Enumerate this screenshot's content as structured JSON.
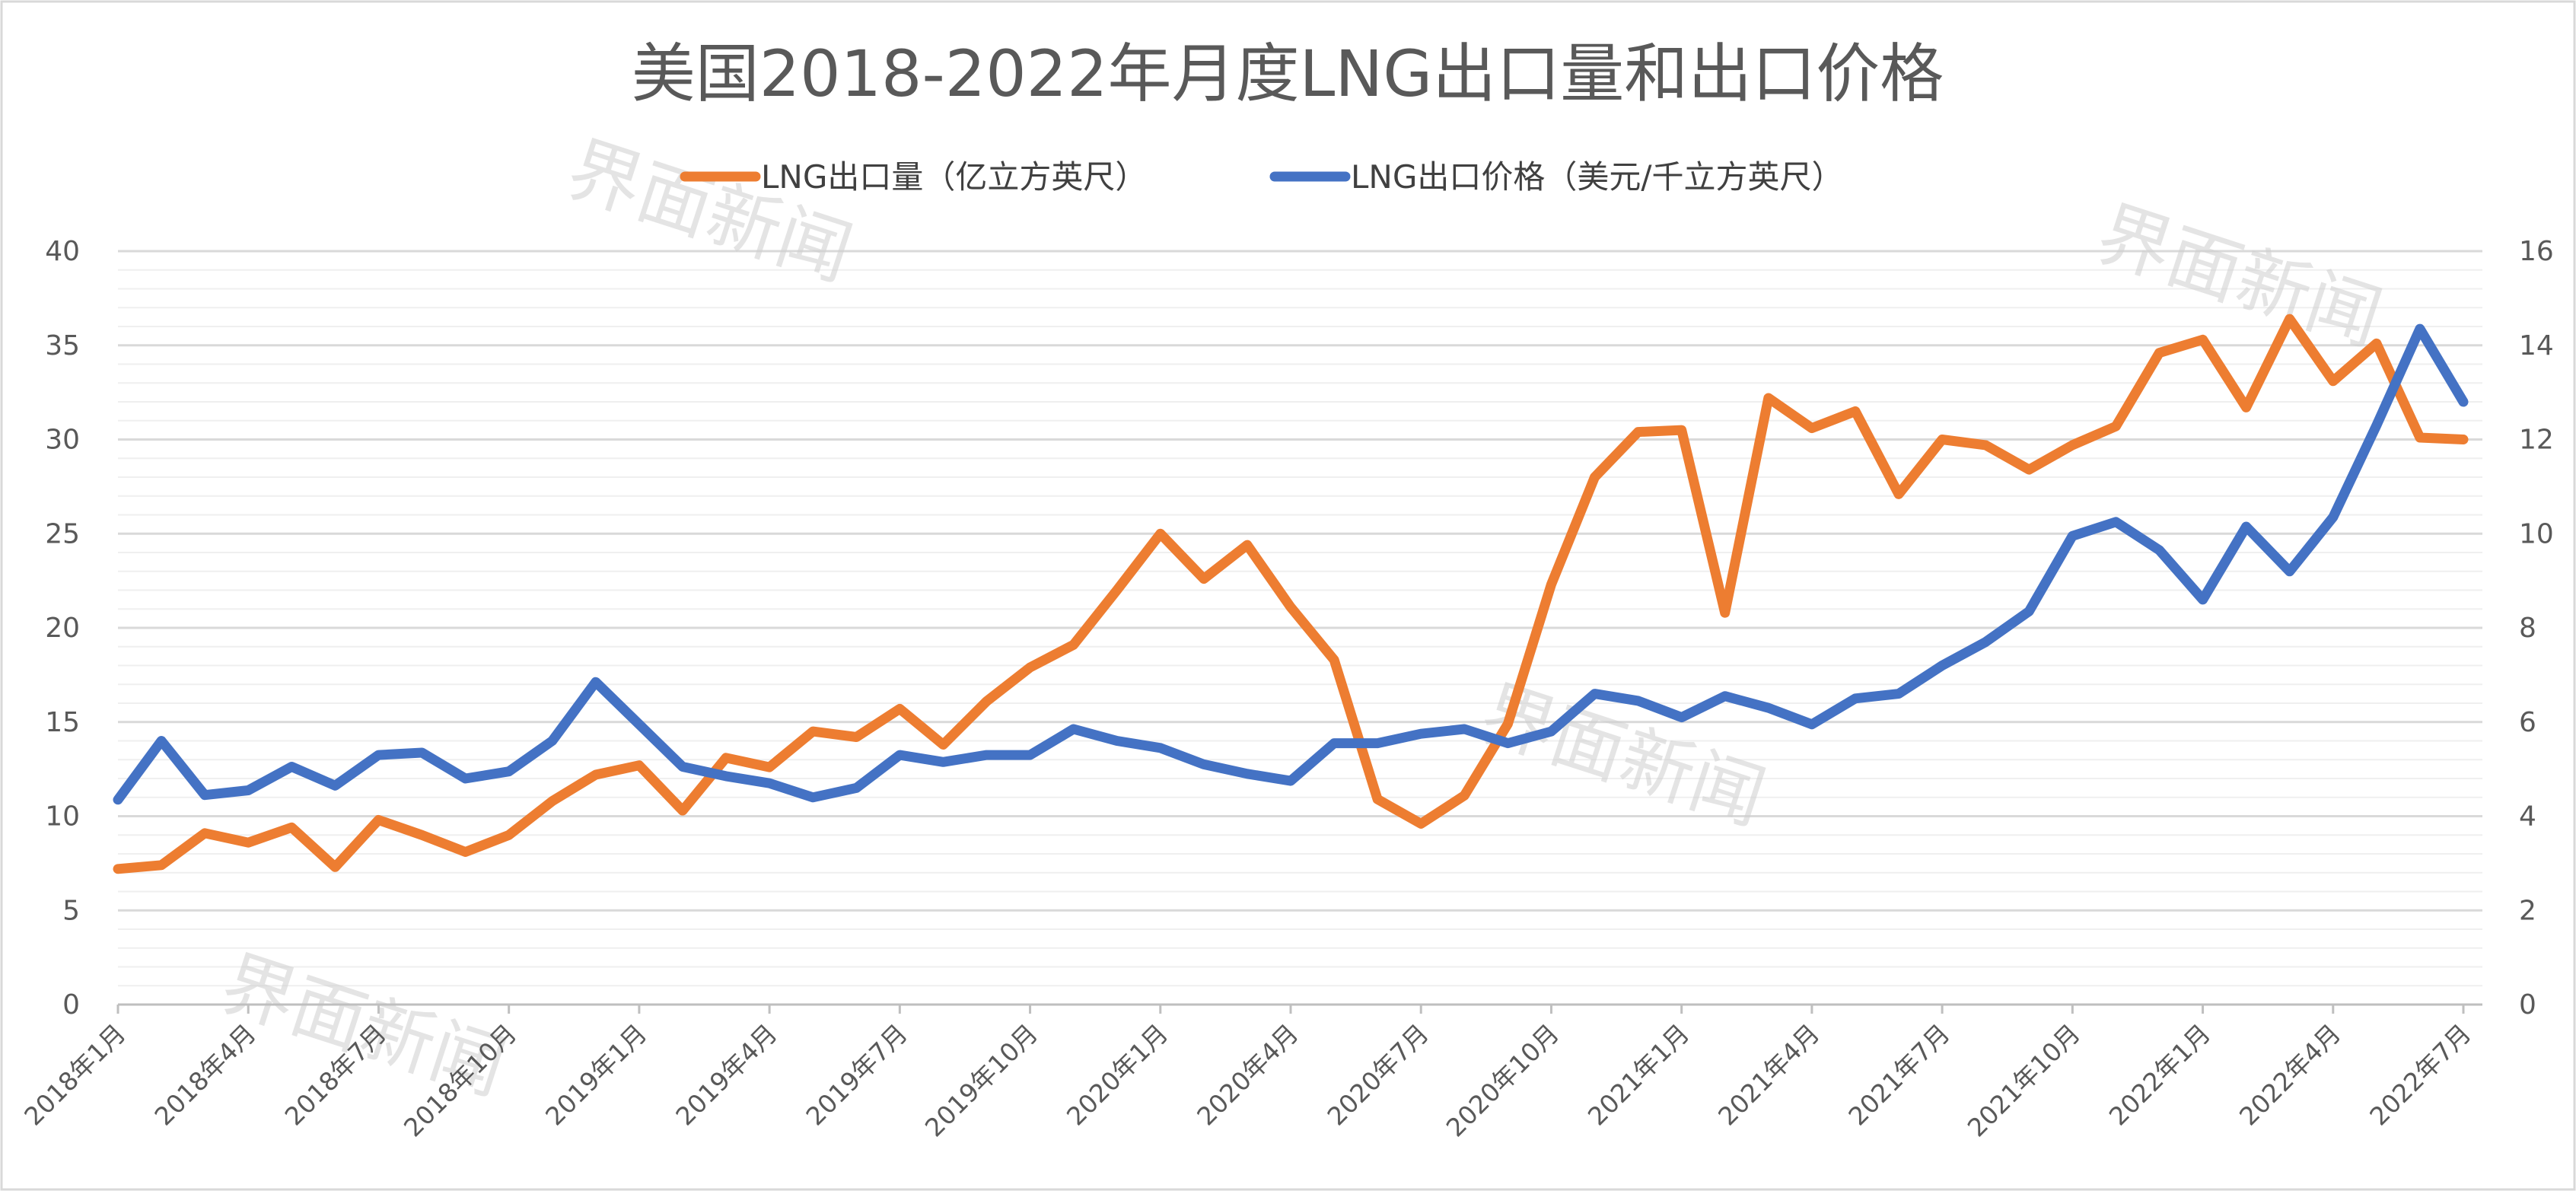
{
  "chart_data": {
    "type": "line",
    "title": "美国2018-2022年月度LNG出口量和出口价格",
    "x": [
      "2018年1月",
      "2018年2月",
      "2018年3月",
      "2018年4月",
      "2018年5月",
      "2018年6月",
      "2018年7月",
      "2018年8月",
      "2018年9月",
      "2018年10月",
      "2018年11月",
      "2018年12月",
      "2019年1月",
      "2019年2月",
      "2019年3月",
      "2019年4月",
      "2019年5月",
      "2019年6月",
      "2019年7月",
      "2019年8月",
      "2019年9月",
      "2019年10月",
      "2019年11月",
      "2019年12月",
      "2020年1月",
      "2020年2月",
      "2020年3月",
      "2020年4月",
      "2020年5月",
      "2020年6月",
      "2020年7月",
      "2020年8月",
      "2020年9月",
      "2020年10月",
      "2020年11月",
      "2020年12月",
      "2021年1月",
      "2021年2月",
      "2021年3月",
      "2021年4月",
      "2021年5月",
      "2021年6月",
      "2021年7月",
      "2021年8月",
      "2021年9月",
      "2021年10月",
      "2021年11月",
      "2021年12月",
      "2022年1月",
      "2022年2月",
      "2022年3月",
      "2022年4月",
      "2022年5月",
      "2022年6月",
      "2022年7月"
    ],
    "x_tick_labels": [
      "2018年1月",
      "2018年4月",
      "2018年7月",
      "2018年10月",
      "2019年1月",
      "2019年4月",
      "2019年7月",
      "2019年10月",
      "2020年1月",
      "2020年4月",
      "2020年7月",
      "2020年10月",
      "2021年1月",
      "2021年4月",
      "2021年7月",
      "2021年10月",
      "2022年1月",
      "2022年4月",
      "2022年7月"
    ],
    "series": [
      {
        "name": "LNG出口量（亿立方英尺）",
        "axis": "left",
        "color": "#ED7D31",
        "values": [
          7.2,
          7.4,
          9.1,
          8.6,
          9.4,
          7.3,
          9.8,
          9.0,
          8.1,
          9.0,
          10.8,
          12.2,
          12.7,
          10.3,
          13.1,
          12.6,
          14.5,
          14.2,
          15.7,
          13.8,
          16.1,
          17.9,
          19.1,
          22.0,
          25.0,
          22.6,
          24.4,
          21.1,
          18.3,
          10.9,
          9.6,
          11.1,
          14.9,
          22.3,
          28.0,
          30.4,
          30.5,
          20.8,
          32.2,
          30.6,
          31.5,
          27.1,
          30.0,
          29.7,
          28.4,
          29.7,
          30.7,
          34.6,
          35.3,
          31.7,
          36.4,
          33.1,
          35.1,
          30.1,
          30.0
        ]
      },
      {
        "name": "LNG出口价格（美元/千立方英尺）",
        "axis": "right",
        "color": "#4472C4",
        "values": [
          4.35,
          5.6,
          4.45,
          4.55,
          5.05,
          4.65,
          5.3,
          5.35,
          4.8,
          4.95,
          5.6,
          6.85,
          5.95,
          5.05,
          4.85,
          4.7,
          4.4,
          4.6,
          5.3,
          5.15,
          5.3,
          5.3,
          5.85,
          5.6,
          5.45,
          5.1,
          4.9,
          4.75,
          5.55,
          5.55,
          5.75,
          5.85,
          5.55,
          5.8,
          6.6,
          6.45,
          6.1,
          6.55,
          6.3,
          5.95,
          6.5,
          6.6,
          7.2,
          7.7,
          8.35,
          9.95,
          10.25,
          9.65,
          8.6,
          10.15,
          9.2,
          10.35,
          12.3,
          14.35,
          12.8
        ]
      }
    ],
    "left_axis": {
      "min": 0,
      "max": 40,
      "ticks": [
        "0",
        "5",
        "10",
        "15",
        "20",
        "25",
        "30",
        "35",
        "40"
      ]
    },
    "right_axis": {
      "min": 0,
      "max": 16,
      "ticks": [
        "0",
        "2",
        "4",
        "6",
        "8",
        "10",
        "12",
        "14",
        "16"
      ]
    },
    "legend_position": "top"
  },
  "watermark": "界面新闻"
}
